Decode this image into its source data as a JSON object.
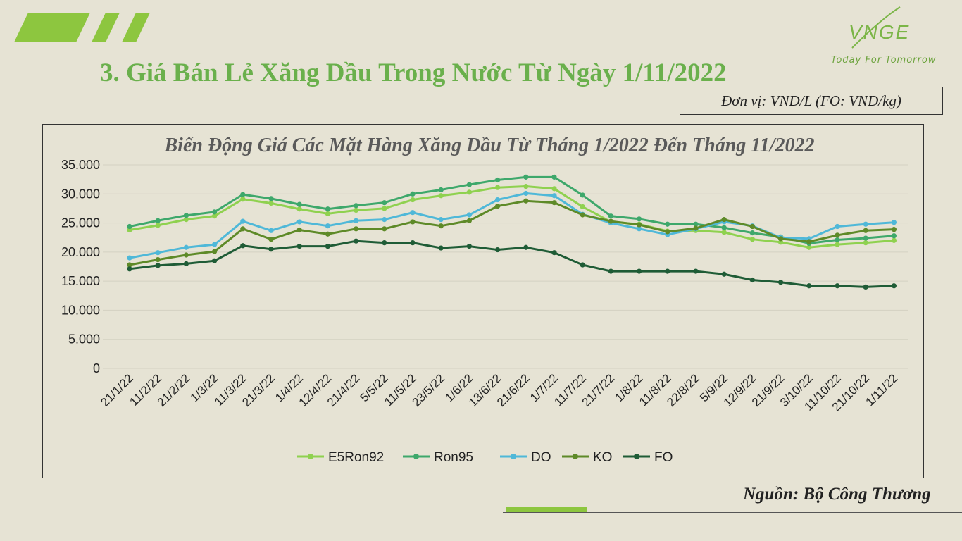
{
  "header": {
    "title": "3. Giá Bán Lẻ Xăng Dầu Trong Nước Từ Ngày 1/11/2022",
    "unit": "Đơn vị: VND/L (FO: VND/kg)"
  },
  "logo": {
    "text": "VNGE",
    "tagline": "Today For Tomorrow"
  },
  "footer": {
    "source": "Nguồn: Bộ Công Thương"
  },
  "colors": {
    "accent": "#8dc63f",
    "title": "#6ab04c"
  },
  "chart_data": {
    "type": "line",
    "title": "Biến Động Giá Các Mặt Hàng Xăng Dầu Từ Tháng 1/2022 Đến Tháng 11/2022",
    "xlabel": "",
    "ylabel": "",
    "ylim": [
      0,
      35000
    ],
    "yticks": [
      "0",
      "5.000",
      "10.000",
      "15.000",
      "20.000",
      "25.000",
      "30.000",
      "35.000"
    ],
    "grid": true,
    "legend": "bottom",
    "categories": [
      "21/1/22",
      "11/2/22",
      "21/2/22",
      "1/3/22",
      "11/3/22",
      "21/3/22",
      "1/4/22",
      "12/4/22",
      "21/4/22",
      "5/5/22",
      "11/5/22",
      "23/5/22",
      "1/6/22",
      "13/6/22",
      "21/6/22",
      "1/7/22",
      "11/7/22",
      "21/7/22",
      "1/8/22",
      "11/8/22",
      "22/8/22",
      "5/9/22",
      "12/9/22",
      "21/9/22",
      "3/10/22",
      "11/10/22",
      "21/10/22",
      "1/11/22"
    ],
    "series": [
      {
        "name": "E5Ron92",
        "color": "#8fd14f",
        "values": [
          23800,
          24600,
          25600,
          26200,
          29100,
          28400,
          27400,
          26600,
          27200,
          27500,
          29000,
          29700,
          30300,
          31100,
          31300,
          30900,
          27800,
          25200,
          24800,
          23600,
          23700,
          23400,
          22200,
          21700,
          20800,
          21300,
          21600,
          22000
        ]
      },
      {
        "name": "Ron95",
        "color": "#3ea86b",
        "values": [
          24400,
          25400,
          26300,
          26900,
          29900,
          29200,
          28200,
          27400,
          28000,
          28500,
          30000,
          30700,
          31600,
          32400,
          32900,
          32900,
          29800,
          26200,
          25700,
          24800,
          24800,
          24200,
          23300,
          22600,
          21500,
          22100,
          22400,
          22800
        ]
      },
      {
        "name": "DO",
        "color": "#4fb8d8",
        "values": [
          19000,
          19900,
          20800,
          21300,
          25300,
          23700,
          25200,
          24500,
          25400,
          25600,
          26800,
          25600,
          26400,
          29000,
          30100,
          29700,
          26500,
          25000,
          24000,
          23000,
          24000,
          25200,
          24500,
          22500,
          22300,
          24400,
          24800,
          25100
        ]
      },
      {
        "name": "KO",
        "color": "#5e8a28",
        "values": [
          17800,
          18700,
          19500,
          20100,
          24000,
          22200,
          23800,
          23100,
          24000,
          24000,
          25200,
          24500,
          25400,
          27900,
          28800,
          28500,
          26400,
          25300,
          24700,
          23500,
          24100,
          25600,
          24400,
          22300,
          21800,
          22900,
          23700,
          23900
        ]
      },
      {
        "name": "FO",
        "color": "#1f5c36",
        "values": [
          17100,
          17700,
          18000,
          18500,
          21100,
          20500,
          21000,
          21000,
          21900,
          21600,
          21600,
          20700,
          21000,
          20400,
          20800,
          19900,
          17800,
          16700,
          16700,
          16700,
          16700,
          16200,
          15200,
          14800,
          14200,
          14200,
          14000,
          14200
        ]
      }
    ]
  }
}
